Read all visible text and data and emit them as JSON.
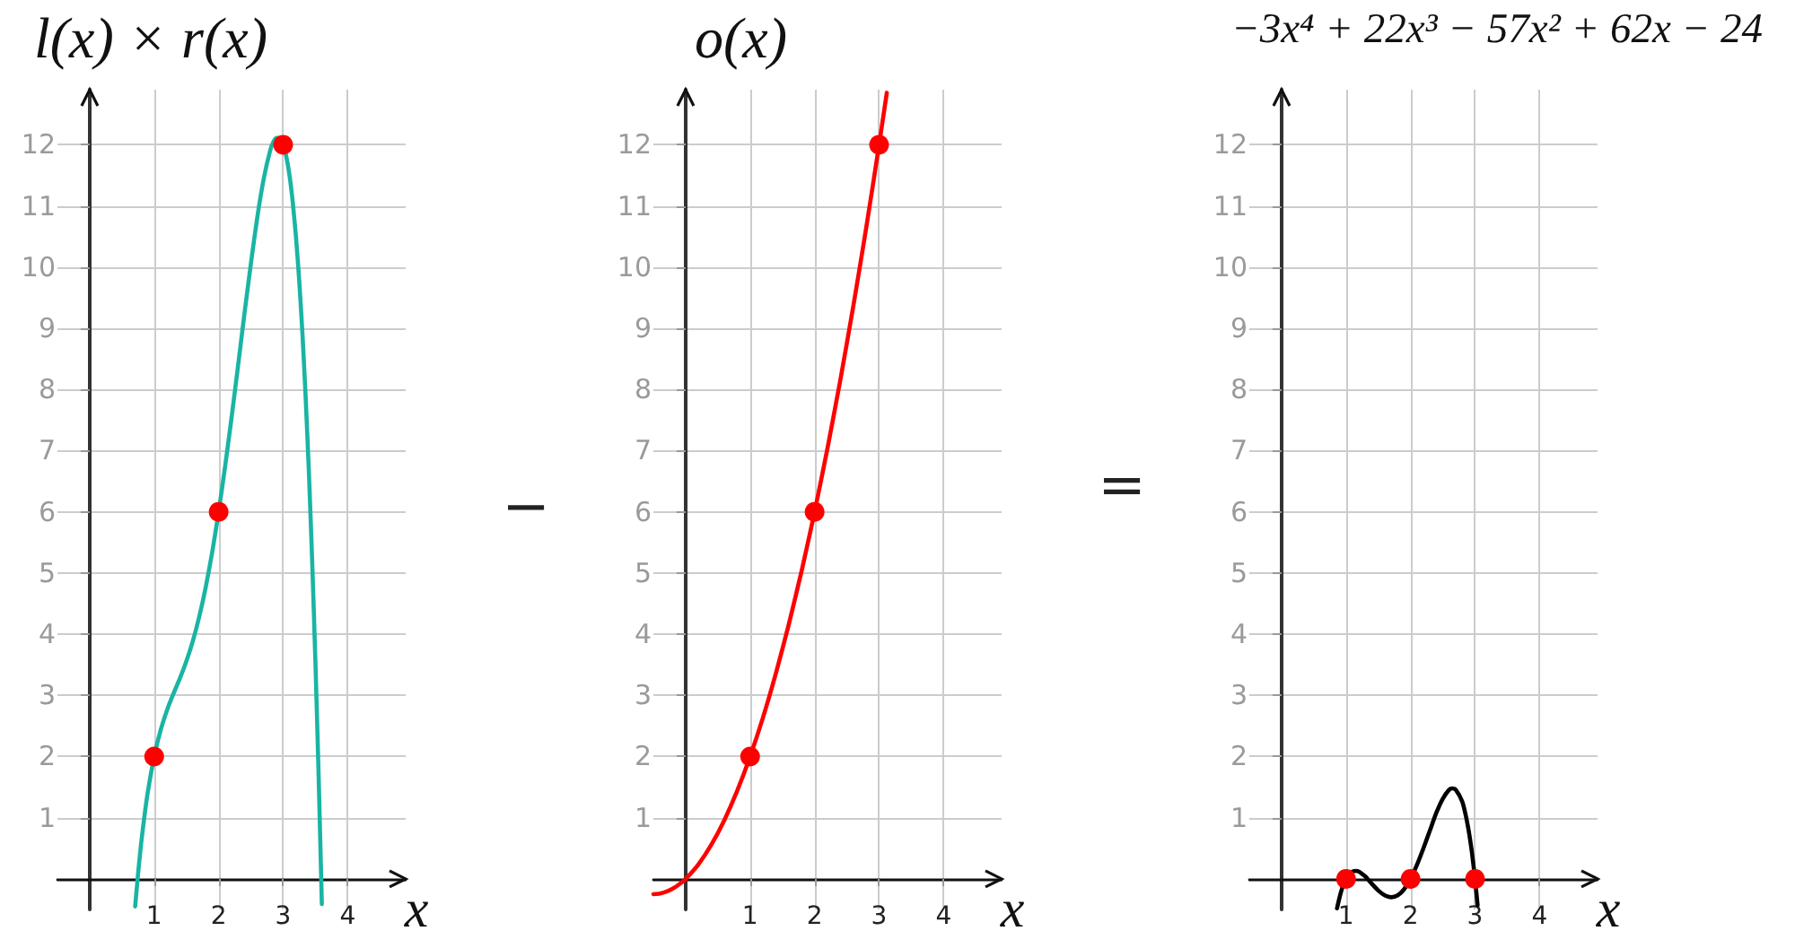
{
  "chart_data": [
    {
      "type": "line",
      "title": "l(x) × r(x)",
      "xlabel": "x",
      "xlim": [
        -0.5,
        4.9
      ],
      "xticks": [
        1,
        2,
        3,
        4
      ],
      "ylim": [
        -0.5,
        12.9
      ],
      "yticks": [
        1,
        2,
        3,
        4,
        5,
        6,
        7,
        8,
        9,
        10,
        11,
        12
      ],
      "grid": true,
      "series": [
        {
          "color": "#19b4a4",
          "x": [
            0.705,
            0.75,
            0.8,
            0.85,
            0.9,
            1,
            1.1,
            1.2,
            1.3,
            1.4,
            1.5,
            1.6,
            1.7,
            1.8,
            1.9,
            2,
            2.1,
            2.2,
            2.3,
            2.4,
            2.5,
            2.6,
            2.7,
            2.8,
            2.85,
            2.9,
            2.95,
            3,
            3.05,
            3.1,
            3.15,
            3.2,
            3.25,
            3.3,
            3.35,
            3.4,
            3.45,
            3.5,
            3.55,
            3.6
          ],
          "values": [
            -0.45,
            0.08,
            0.6,
            1.03,
            1.41,
            2,
            2.43,
            2.76,
            3.03,
            3.28,
            3.56,
            3.89,
            4.29,
            4.77,
            5.34,
            6,
            6.74,
            7.54,
            8.38,
            9.24,
            10.06,
            10.82,
            11.45,
            11.91,
            12.05,
            12.11,
            12.1,
            12,
            11.8,
            11.49,
            11.05,
            10.48,
            9.77,
            8.9,
            7.85,
            6.63,
            5.2,
            3.56,
            1.7,
            -0.41
          ]
        },
        {
          "type": "scatter",
          "color": "#ff0000",
          "marker": "circle",
          "x": [
            1,
            2,
            3
          ],
          "values": [
            2,
            6,
            12
          ]
        }
      ],
      "annotations": [
        "−"
      ]
    },
    {
      "type": "line",
      "title": "o(x)",
      "xlabel": "x",
      "xlim": [
        -0.5,
        4.9
      ],
      "xticks": [
        1,
        2,
        3,
        4
      ],
      "ylim": [
        -0.5,
        12.9
      ],
      "yticks": [
        1,
        2,
        3,
        4,
        5,
        6,
        7,
        8,
        9,
        10,
        11,
        12
      ],
      "grid": true,
      "series": [
        {
          "color": "#ff0000",
          "x": [
            -0.5,
            -0.4,
            -0.3,
            -0.2,
            -0.1,
            0,
            0.2,
            0.4,
            0.6,
            0.8,
            1,
            1.2,
            1.4,
            1.6,
            1.8,
            2,
            2.2,
            2.4,
            2.6,
            2.8,
            3,
            3.12
          ],
          "values": [
            -0.25,
            -0.24,
            -0.21,
            -0.16,
            -0.09,
            0,
            0.24,
            0.56,
            0.96,
            1.44,
            2,
            2.64,
            3.36,
            4.16,
            5.04,
            6,
            7.04,
            8.16,
            9.36,
            10.64,
            12,
            12.85
          ]
        },
        {
          "type": "scatter",
          "color": "#ff0000",
          "marker": "circle",
          "x": [
            1,
            2,
            3
          ],
          "values": [
            2,
            6,
            12
          ]
        }
      ],
      "annotations": [
        "="
      ]
    },
    {
      "type": "line",
      "title": "−3x⁴ + 22x³ − 57x² + 62x − 24",
      "xlabel": "x",
      "xlim": [
        -0.5,
        4.9
      ],
      "xticks": [
        1,
        2,
        3,
        4
      ],
      "ylim": [
        -0.5,
        12.9
      ],
      "yticks": [
        1,
        2,
        3,
        4,
        5,
        6,
        7,
        8,
        9,
        10,
        11,
        12
      ],
      "grid": true,
      "series": [
        {
          "color": "#000000",
          "x": [
            0.86,
            0.9,
            0.95,
            1,
            1.05,
            1.1,
            1.15,
            1.2,
            1.25,
            1.3,
            1.4,
            1.5,
            1.6,
            1.7,
            1.8,
            1.9,
            2,
            2.1,
            2.2,
            2.3,
            2.4,
            2.5,
            2.6,
            2.65,
            2.7,
            2.8,
            2.85,
            2.9,
            2.95,
            3,
            3.04
          ],
          "values": [
            -0.48,
            -0.3,
            -0.12,
            0,
            0.08,
            0.12,
            0.13,
            0.12,
            0.08,
            0.04,
            -0.08,
            -0.19,
            -0.27,
            -0.3,
            -0.27,
            -0.17,
            0,
            0.23,
            0.5,
            0.79,
            1.08,
            1.31,
            1.46,
            1.48,
            1.46,
            1.27,
            1.07,
            0.8,
            0.45,
            0,
            -0.43
          ]
        },
        {
          "type": "scatter",
          "color": "#ff0000",
          "marker": "circle",
          "x": [
            1,
            2,
            3
          ],
          "values": [
            0,
            0,
            0
          ]
        }
      ]
    }
  ]
}
